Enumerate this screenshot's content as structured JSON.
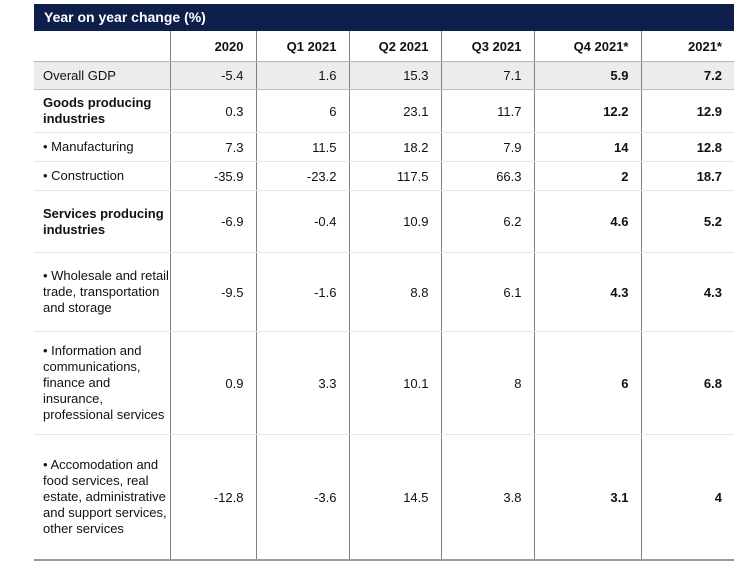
{
  "table": {
    "title": "Year on year change (%)",
    "columns": [
      "",
      "2020",
      "Q1 2021",
      "Q2 2021",
      "Q3 2021",
      "Q4 2021*",
      "2021*"
    ],
    "rows": [
      {
        "label": "Overall GDP",
        "values": [
          "-5.4",
          "1.6",
          "15.3",
          "7.1",
          "5.9",
          "7.2"
        ]
      },
      {
        "label": "Goods producing industries",
        "values": [
          "0.3",
          "6",
          "23.1",
          "11.7",
          "12.2",
          "12.9"
        ]
      },
      {
        "label": "• Manufacturing",
        "values": [
          "7.3",
          "11.5",
          "18.2",
          "7.9",
          "14",
          "12.8"
        ]
      },
      {
        "label": "• Construction",
        "values": [
          "-35.9",
          "-23.2",
          "117.5",
          "66.3",
          "2",
          "18.7"
        ]
      },
      {
        "label": "Services producing industries",
        "values": [
          "-6.9",
          "-0.4",
          "10.9",
          "6.2",
          "4.6",
          "5.2"
        ]
      },
      {
        "label": "• Wholesale and retail trade, transportation and storage",
        "values": [
          "-9.5",
          "-1.6",
          "8.8",
          "6.1",
          "4.3",
          "4.3"
        ]
      },
      {
        "label": "• Information and communications, finance and insurance, professional services",
        "values": [
          "0.9",
          "3.3",
          "10.1",
          "8",
          "6",
          "6.8"
        ]
      },
      {
        "label": "• Accomodation and food services, real estate, administrative and support services, other services",
        "values": [
          "-12.8",
          "-3.6",
          "14.5",
          "3.8",
          "3.1",
          "4"
        ]
      }
    ]
  }
}
